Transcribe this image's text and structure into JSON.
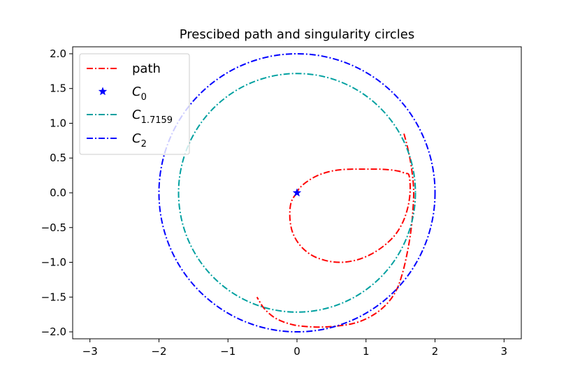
{
  "chart_data": {
    "type": "line",
    "title": "Prescibed path and singularity circles",
    "xlabel": "",
    "ylabel": "",
    "xlim": [
      -3.25,
      3.25
    ],
    "ylim": [
      -2.1,
      2.1
    ],
    "xticks": [
      -3,
      -2,
      -1,
      0,
      1,
      2,
      3
    ],
    "xtick_labels": [
      "−3",
      "−2",
      "−1",
      "0",
      "1",
      "2",
      "3"
    ],
    "yticks": [
      -2.0,
      -1.5,
      -1.0,
      -0.5,
      0.0,
      0.5,
      1.0,
      1.5,
      2.0
    ],
    "ytick_labels": [
      "−2.0",
      "−1.5",
      "−1.0",
      "−0.5",
      "0.0",
      "0.5",
      "1.0",
      "1.5",
      "2.0"
    ],
    "grid": false,
    "legend_position": "top-left",
    "series": [
      {
        "name": "path",
        "kind": "line",
        "style": "dashdot",
        "color": "#ff0000",
        "points": [
          [
            0.0,
            0.0
          ],
          [
            -0.07,
            -0.1
          ],
          [
            -0.1,
            -0.22
          ],
          [
            -0.1,
            -0.4
          ],
          [
            -0.06,
            -0.58
          ],
          [
            0.04,
            -0.75
          ],
          [
            0.2,
            -0.89
          ],
          [
            0.4,
            -0.97
          ],
          [
            0.62,
            -1.0
          ],
          [
            0.85,
            -0.97
          ],
          [
            1.06,
            -0.89
          ],
          [
            1.25,
            -0.77
          ],
          [
            1.41,
            -0.62
          ],
          [
            1.52,
            -0.45
          ],
          [
            1.59,
            -0.27
          ],
          [
            1.63,
            -0.08
          ],
          [
            1.64,
            0.1
          ],
          [
            1.62,
            0.26
          ],
          [
            1.57,
            0.28
          ],
          [
            1.48,
            0.31
          ],
          [
            1.35,
            0.33
          ],
          [
            1.2,
            0.34
          ],
          [
            1.0,
            0.34
          ],
          [
            0.8,
            0.34
          ],
          [
            0.62,
            0.33
          ],
          [
            0.45,
            0.3
          ],
          [
            0.28,
            0.24
          ],
          [
            0.13,
            0.15
          ],
          [
            0.03,
            0.06
          ],
          [
            0.0,
            0.0
          ]
        ]
      },
      {
        "name": "path_outer",
        "kind": "line",
        "style": "dashdot",
        "color": "#ff0000",
        "points": [
          [
            1.55,
            0.85
          ],
          [
            1.61,
            0.62
          ],
          [
            1.66,
            0.35
          ],
          [
            1.69,
            0.05
          ],
          [
            1.68,
            -0.25
          ],
          [
            1.65,
            -0.55
          ],
          [
            1.6,
            -0.85
          ],
          [
            1.53,
            -1.15
          ],
          [
            1.44,
            -1.4
          ],
          [
            1.3,
            -1.6
          ],
          [
            1.1,
            -1.76
          ],
          [
            0.85,
            -1.87
          ],
          [
            0.55,
            -1.92
          ],
          [
            0.25,
            -1.93
          ],
          [
            -0.05,
            -1.9
          ],
          [
            -0.3,
            -1.81
          ],
          [
            -0.47,
            -1.67
          ],
          [
            -0.58,
            -1.5
          ]
        ]
      },
      {
        "name": "C_1.7159",
        "kind": "circle",
        "radius": 1.7159,
        "style": "dashdot",
        "color": "#00a0a0"
      },
      {
        "name": "C_2",
        "kind": "circle",
        "radius": 2.0,
        "style": "dashdot",
        "color": "#0000ff"
      },
      {
        "name": "C_0",
        "kind": "marker",
        "marker": "star",
        "color": "#0000ff",
        "points": [
          [
            0.0,
            0.0
          ]
        ]
      }
    ],
    "legend": [
      {
        "label": "path",
        "sub": "",
        "type": "line",
        "color": "#ff0000"
      },
      {
        "label": "C",
        "sub": "0",
        "type": "star",
        "color": "#0000ff"
      },
      {
        "label": "C",
        "sub": "1.7159",
        "type": "line",
        "color": "#00a0a0"
      },
      {
        "label": "C",
        "sub": "2",
        "type": "line",
        "color": "#0000ff"
      }
    ]
  }
}
